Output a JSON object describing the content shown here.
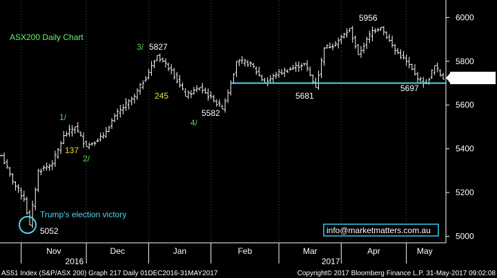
{
  "chart_data": {
    "type": "candlestick",
    "title": "ASX200 Daily Chart",
    "ylim": [
      4970,
      6080
    ],
    "yticks": [
      5000,
      5200,
      5400,
      5600,
      5800,
      6000
    ],
    "grid": "vertical dotted at month starts",
    "colors": {
      "background": "#000000",
      "bars": "#ffffff",
      "support": "#4fd8f0",
      "title": "#6cf06c",
      "wave": "#4ddc4d",
      "retrace": "#f0e040",
      "email_border": "#39c8ee",
      "last_price_bg": "#ffffff"
    },
    "months": [
      {
        "label": "Nov",
        "year": "2016"
      },
      {
        "label": "Dec",
        "year": ""
      },
      {
        "label": "Jan",
        "year": ""
      },
      {
        "label": "Feb",
        "year": ""
      },
      {
        "label": "Mar",
        "year": "2017"
      },
      {
        "label": "Apr",
        "year": ""
      },
      {
        "label": "May",
        "year": ""
      }
    ],
    "waypoints": [
      [
        0,
        5370
      ],
      [
        4,
        5250
      ],
      [
        8,
        5170
      ],
      [
        10,
        5052
      ],
      [
        13,
        5300
      ],
      [
        18,
        5330
      ],
      [
        22,
        5460
      ],
      [
        26,
        5500
      ],
      [
        30,
        5410
      ],
      [
        36,
        5460
      ],
      [
        40,
        5550
      ],
      [
        47,
        5640
      ],
      [
        52,
        5750
      ],
      [
        55,
        5827
      ],
      [
        60,
        5760
      ],
      [
        65,
        5640
      ],
      [
        70,
        5680
      ],
      [
        75,
        5620
      ],
      [
        78,
        5582
      ],
      [
        81,
        5700
      ],
      [
        83,
        5800
      ],
      [
        88,
        5790
      ],
      [
        93,
        5700
      ],
      [
        97,
        5740
      ],
      [
        103,
        5770
      ],
      [
        107,
        5790
      ],
      [
        111,
        5681
      ],
      [
        114,
        5860
      ],
      [
        118,
        5880
      ],
      [
        123,
        5950
      ],
      [
        126,
        5830
      ],
      [
        131,
        5940
      ],
      [
        134,
        5956
      ],
      [
        139,
        5850
      ],
      [
        143,
        5800
      ],
      [
        147,
        5720
      ],
      [
        150,
        5697
      ],
      [
        153,
        5780
      ],
      [
        156,
        5717.8862
      ]
    ],
    "support_level": 5700,
    "last_price": "5717.8862",
    "annotations": {
      "title": "ASX200 Daily Chart",
      "wave1": "1/",
      "wave2": "2/",
      "wave3": "3/",
      "wave4": "4/",
      "retrace1": "137",
      "retrace2": "245",
      "high1": "5827",
      "low1": "5582",
      "low2": "5681",
      "high2": "5956",
      "low3": "5697",
      "low0": "5052",
      "event": "Trump's election victory"
    },
    "email": "info@marketmatters.com.au"
  },
  "footer": {
    "left": "AS51 Index (S&P/ASX 200) Graph 217  Daily 01DEC2016-31MAY2017",
    "right": "Copyright© 2017 Bloomberg Finance L.P.    31-May-2017 09:02:08"
  }
}
